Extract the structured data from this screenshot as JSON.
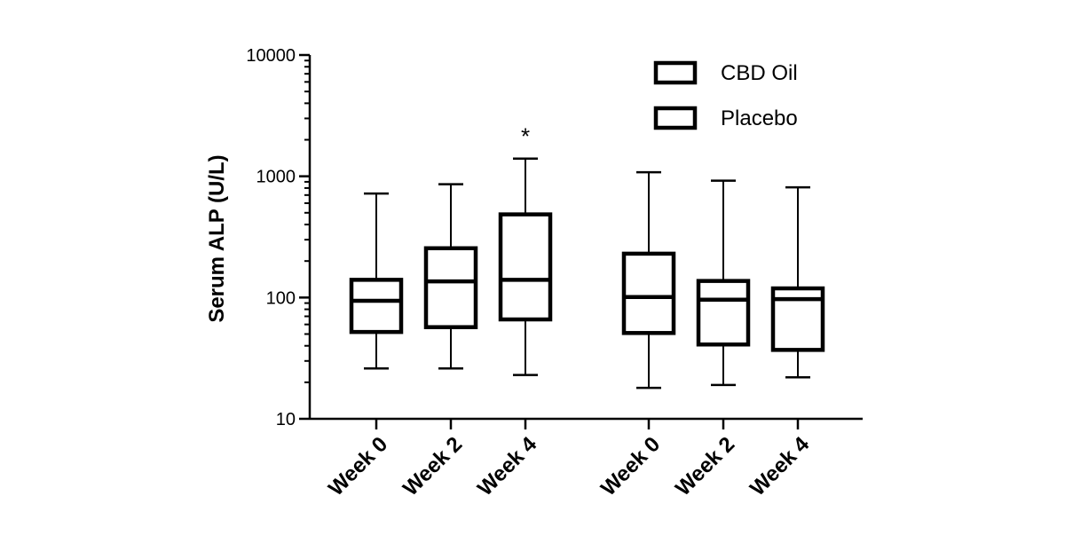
{
  "chart_data": {
    "type": "box",
    "ylabel": "Serum ALP (U/L)",
    "yscale": "log",
    "ylim": [
      10,
      10000
    ],
    "yticks": [
      "10",
      "100",
      "1000",
      "10000"
    ],
    "legend": {
      "placement": "top-right",
      "entries": [
        "CBD Oil",
        "Placebo"
      ]
    },
    "series": [
      {
        "name": "CBD Oil",
        "boxes": [
          {
            "category": "Week 0",
            "min": 26,
            "q1": 52,
            "median": 94,
            "q3": 140,
            "max": 720
          },
          {
            "category": "Week 2",
            "min": 26,
            "q1": 57,
            "median": 136,
            "q3": 255,
            "max": 860
          },
          {
            "category": "Week 4",
            "min": 23,
            "q1": 66,
            "median": 140,
            "q3": 485,
            "max": 1400,
            "annotation": "*"
          }
        ]
      },
      {
        "name": "Placebo",
        "boxes": [
          {
            "category": "Week 0",
            "min": 18,
            "q1": 51,
            "median": 101,
            "q3": 230,
            "max": 1080
          },
          {
            "category": "Week 2",
            "min": 19,
            "q1": 41,
            "median": 96,
            "q3": 137,
            "max": 920
          },
          {
            "category": "Week 4",
            "min": 22,
            "q1": 37,
            "median": 97,
            "q3": 119,
            "max": 810
          }
        ]
      }
    ]
  }
}
